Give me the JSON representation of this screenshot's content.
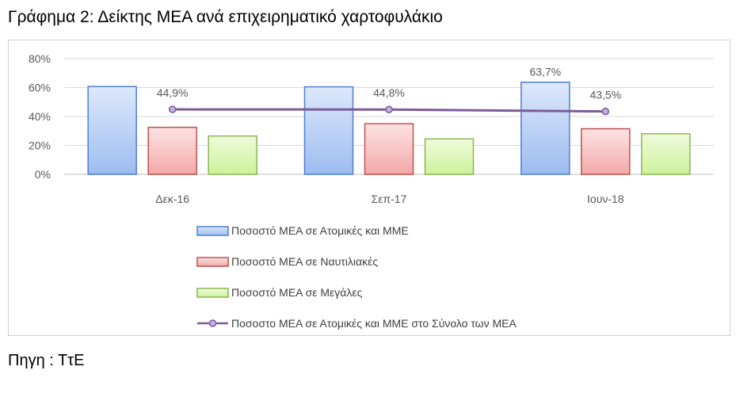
{
  "page": {
    "title": "Γράφημα 2: Δείκτης ΜΕΑ ανά επιχειρηματικό χαρτοφυλάκιο",
    "source": "Πηγη : ΤτΕ"
  },
  "chart_data": {
    "type": "bar",
    "categories": [
      "Δεκ-16",
      "Σεπ-17",
      "Ιουν-18"
    ],
    "y_ticks": [
      "0%",
      "20%",
      "40%",
      "60%",
      "80%"
    ],
    "ylim": [
      0,
      80
    ],
    "grid": true,
    "legend_position": "bottom",
    "series": [
      {
        "name": "Ποσοστό ΜΕΑ σε Ατομικές και ΜΜΕ",
        "type": "bar",
        "values": [
          60.7,
          60.5,
          63.7
        ],
        "labels": [
          "",
          "",
          "63,7%"
        ],
        "fill_top": "#dde8fb",
        "fill_bottom": "#9dbdf0",
        "stroke": "#4f7fcf"
      },
      {
        "name": "Ποσοστό ΜΕΑ σε Ναυτιλιακές",
        "type": "bar",
        "values": [
          32.5,
          35.0,
          31.5
        ],
        "labels": [
          "",
          "",
          ""
        ],
        "fill_top": "#fde3e3",
        "fill_bottom": "#f3a9a9",
        "stroke": "#c0504d"
      },
      {
        "name": "Ποσοστό ΜΕΑ σε Μεγάλες",
        "type": "bar",
        "values": [
          26.5,
          24.5,
          28.0
        ],
        "labels": [
          "",
          "",
          ""
        ],
        "fill_top": "#effbdc",
        "fill_bottom": "#cdf29a",
        "stroke": "#8cb653"
      },
      {
        "name": "Ποσοστο ΜΕΑ σε Ατομικές και ΜΜΕ στο Σύνολο των ΜΕΑ",
        "type": "line",
        "values": [
          44.9,
          44.8,
          43.5
        ],
        "labels": [
          "44,9%",
          "44,8%",
          "43,5%"
        ],
        "stroke": "#7b5c9a",
        "marker_fill": "#c3b2db"
      }
    ]
  }
}
